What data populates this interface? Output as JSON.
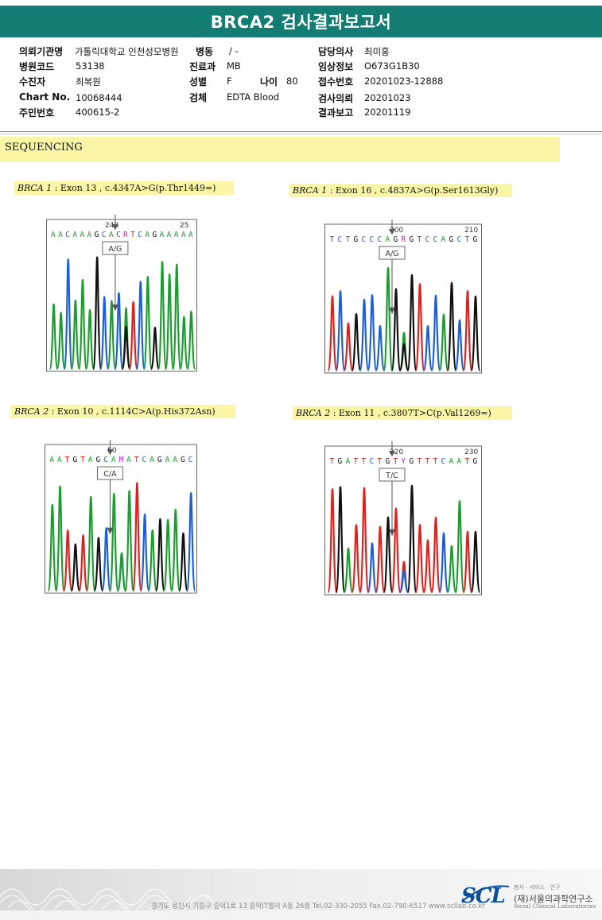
{
  "header": {
    "title": "BRCA2 검사결과보고서"
  },
  "patient": {
    "hospital_label": "의뢰기관명",
    "hospital_value": "가톨릭대학교 인천성모병원",
    "ward_label": "병동",
    "ward_value": "/ -",
    "doctor_label": "담당의사",
    "doctor_value": "최미홍",
    "code_label": "병원코드",
    "code_value": "53138",
    "dept_label": "진료과",
    "dept_value": "MB",
    "clinical_label": "임상정보",
    "clinical_value": "O673G1B30",
    "name_label": "수진자",
    "name_value": "최복원",
    "sex_label": "성별",
    "sex_value": "F",
    "age_label": "나이",
    "age_value": "80",
    "receipt_label": "접수번호",
    "receipt_value": "20201023-12888",
    "chart_label": "Chart No.",
    "chart_value": "10068444",
    "specimen_label": "검체",
    "specimen_value": "EDTA Blood",
    "request_label": "검사의뢰",
    "request_value": "20201023",
    "ssn_label": "주민번호",
    "ssn_value": "400615-2",
    "report_label": "결과보고",
    "report_value": "20201119"
  },
  "section": {
    "title": "SEQUENCING"
  },
  "panels": [
    {
      "gene": "BRCA 1",
      "desc": ": Exon 13 , c.4347A>G(p.Thr1449=)",
      "pos1": "240",
      "pos2": "25",
      "bases": "AACAAAGCACRTCAGAAAAA",
      "call": "A/G"
    },
    {
      "gene": "BRCA 1",
      "desc": ": Exon 16 , c.4837A>G(p.Ser1613Gly)",
      "pos1": "200",
      "pos2": "210",
      "bases": "TCTGCCCAGRGTCCAGCTG",
      "call": "A/G"
    },
    {
      "gene": "BRCA 2",
      "desc": ": Exon 10 , c.1114C>A(p.His372Asn)",
      "pos1": "50",
      "pos2": "",
      "bases": "AATGTAGCAMATCAGAAGC",
      "call": "C/A"
    },
    {
      "gene": "BRCA 2",
      "desc": ": Exon 11 , c.3807T>C(p.Val1269=)",
      "pos1": "220",
      "pos2": "230",
      "bases": "TGATTCTGTYGTTTCAATG",
      "call": "T/C"
    }
  ],
  "footer": {
    "address": "경기도 용인시 기흥구 흥덕1로 13 흥덕IT밸리 A동 26층  Tel.02-330-2055  Fax.02-790-6517  www.scllab.co.kr",
    "logo": "SCL",
    "org_name": "(재)서울의과학연구소",
    "motto": "봉사 · 서비스 · 연구",
    "org_en": "Seoul Clinical Laboratories"
  },
  "colors": {
    "A": "#1a9e2e",
    "C": "#1c5fd6",
    "G": "#111111",
    "T": "#e0201c",
    "title_bar": "#137d74",
    "highlight": "#fbf6a5"
  }
}
